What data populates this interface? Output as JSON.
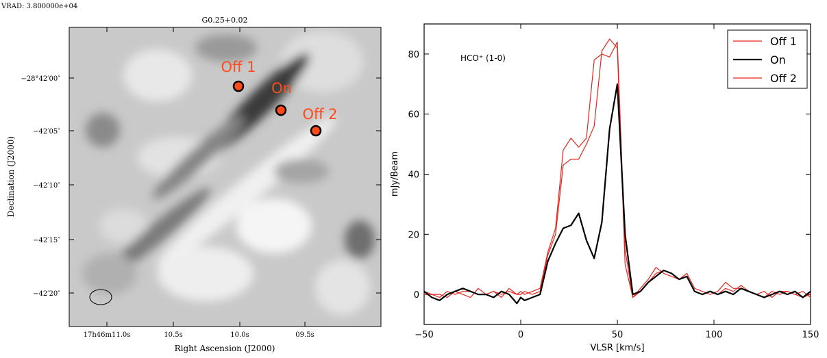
{
  "left_panel": {
    "header": "VRAD: 3.800000e+04",
    "title": "G0.25+0.02",
    "xlabel": "Right Ascension (J2000)",
    "ylabel": "Declination (J2000)",
    "x_ticks": [
      "17h46m11.0s",
      "10.5s",
      "10.0s",
      "09.5s"
    ],
    "y_ticks": [
      "−28°42′00″",
      "−42′05″",
      "−42′10″",
      "−42′15″",
      "−42′20″"
    ],
    "markers": [
      {
        "label": "Off 1",
        "color": "#ff4a1c"
      },
      {
        "label": "On",
        "color": "#ff4a1c"
      },
      {
        "label": "Off 2",
        "color": "#ff4a1c"
      }
    ],
    "beam": "ellipse"
  },
  "chart_data": {
    "type": "line",
    "xlabel": "VLSR [km/s]",
    "ylabel": "mJy/Beam",
    "annotation": "HCO⁺ (1-0)",
    "xlim": [
      -50,
      150
    ],
    "ylim": [
      -10,
      90
    ],
    "xticks": [
      -50,
      0,
      50,
      100,
      150
    ],
    "yticks": [
      0,
      20,
      40,
      60,
      80
    ],
    "grid": false,
    "legend_position": "top-right",
    "x": [
      -54,
      -50,
      -46,
      -42,
      -38,
      -34,
      -30,
      -26,
      -22,
      -18,
      -14,
      -10,
      -6,
      -2,
      0,
      2,
      6,
      10,
      14,
      18,
      22,
      26,
      30,
      34,
      38,
      42,
      46,
      50,
      54,
      58,
      62,
      66,
      70,
      74,
      78,
      82,
      86,
      90,
      94,
      98,
      102,
      106,
      110,
      114,
      118,
      122,
      126,
      130,
      134,
      138,
      142,
      146,
      150
    ],
    "series": [
      {
        "name": "Off 1",
        "color": "#e8231b",
        "width": 1.2,
        "values": [
          1,
          0,
          0,
          -1,
          1,
          0,
          1,
          1,
          0,
          0,
          1,
          0,
          1,
          0,
          1,
          0,
          1,
          2,
          14,
          22,
          48,
          52,
          49,
          52,
          78,
          80,
          79,
          84,
          15,
          -1,
          1,
          4,
          7,
          8,
          7,
          5,
          6,
          1,
          0,
          1,
          0,
          2,
          1,
          3,
          1,
          0,
          -1,
          1,
          0,
          1,
          0,
          -1,
          0
        ]
      },
      {
        "name": "On",
        "color": "#000000",
        "width": 2.2,
        "values": [
          0,
          1,
          -1,
          -2,
          0,
          1,
          2,
          1,
          0,
          0,
          -1,
          1,
          0,
          -3,
          -1,
          -2,
          -1,
          0,
          11,
          17,
          22,
          23,
          27,
          18,
          12,
          24,
          55,
          70,
          20,
          0,
          1,
          4,
          6,
          8,
          7,
          5,
          6,
          1,
          0,
          1,
          0,
          1,
          0,
          2,
          1,
          0,
          -1,
          0,
          1,
          0,
          1,
          -1,
          1
        ]
      },
      {
        "name": "Off 2",
        "color": "#e8231b",
        "width": 1.2,
        "values": [
          -1,
          1,
          0,
          0,
          -1,
          1,
          0,
          -1,
          2,
          0,
          1,
          -1,
          2,
          0,
          0,
          1,
          0,
          1,
          13,
          20,
          43,
          45,
          45,
          50,
          56,
          81,
          85,
          82,
          10,
          -1,
          2,
          5,
          9,
          7,
          6,
          5,
          7,
          2,
          1,
          0,
          1,
          4,
          2,
          2,
          1,
          0,
          1,
          -1,
          1,
          1,
          0,
          1,
          -1
        ]
      }
    ]
  }
}
